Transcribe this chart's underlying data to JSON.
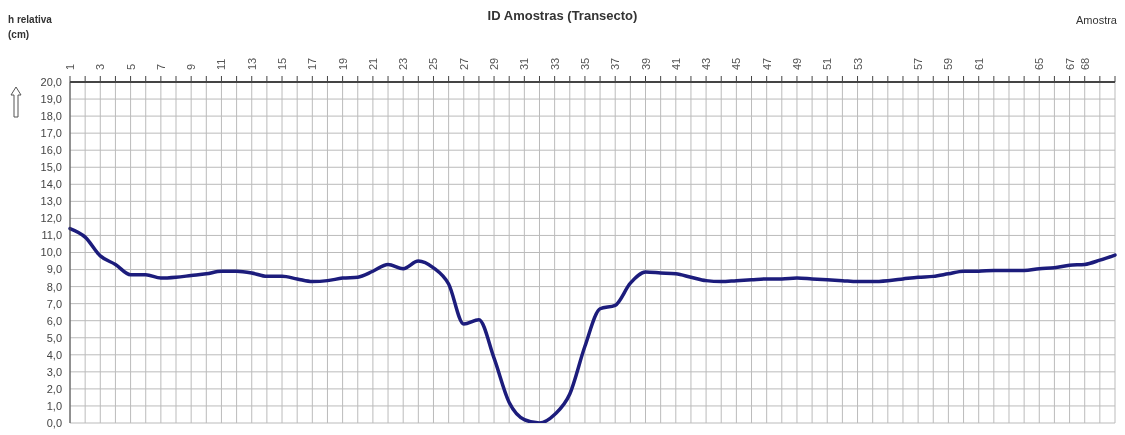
{
  "chart_data": {
    "type": "line",
    "title": "ID Amostras (Transecto)",
    "xlabel": "Amostra",
    "ylabel": "h relativa (cm)",
    "categories": [
      "1",
      null,
      "3",
      null,
      "5",
      null,
      "7",
      null,
      "9",
      null,
      "11",
      null,
      "13",
      null,
      "15",
      null,
      "17",
      null,
      "19",
      null,
      "21",
      null,
      "23",
      null,
      "25",
      null,
      "27",
      null,
      "29",
      null,
      "31",
      null,
      "33",
      null,
      "35",
      null,
      "37",
      null,
      "39",
      null,
      "41",
      null,
      "43",
      null,
      "45",
      null,
      "47",
      null,
      "49",
      null,
      "51",
      null,
      "53",
      null,
      null,
      null,
      "57",
      null,
      "59",
      null,
      "61",
      null,
      null,
      null,
      "65",
      null,
      "67",
      "68",
      null,
      null
    ],
    "series": [
      {
        "color": "#1c1c7c",
        "values": [
          11.4,
          10.9,
          9.8,
          9.3,
          8.7,
          8.7,
          8.5,
          8.55,
          8.65,
          8.75,
          8.9,
          8.9,
          8.8,
          8.6,
          8.6,
          8.45,
          8.3,
          8.35,
          8.5,
          8.55,
          8.9,
          9.3,
          9.05,
          9.5,
          9.1,
          8.15,
          5.8,
          6.05,
          3.8,
          1.2,
          0.2,
          0,
          0.5,
          1.7,
          4.5,
          6.7,
          6.9,
          8.2,
          8.85,
          8.8,
          8.75,
          8.55,
          8.35,
          8.3,
          8.35,
          8.4,
          8.45,
          8.45,
          8.5,
          8.45,
          8.4,
          8.35,
          8.3,
          8.3,
          8.35,
          8.45,
          8.55,
          8.6,
          8.75,
          8.9,
          8.9,
          8.95,
          8.95,
          8.95,
          9.05,
          9.1,
          9.25,
          9.3,
          9.55,
          9.85
        ]
      }
    ],
    "ylim": [
      0,
      20
    ],
    "yticks": [
      {
        "value": 0,
        "label": "0,0"
      },
      {
        "value": 1,
        "label": "1,0"
      },
      {
        "value": 2,
        "label": "2,0"
      },
      {
        "value": 3,
        "label": "3,0"
      },
      {
        "value": 4,
        "label": "4,0"
      },
      {
        "value": 5,
        "label": "5,0"
      },
      {
        "value": 6,
        "label": "6,0"
      },
      {
        "value": 7,
        "label": "7,0"
      },
      {
        "value": 8,
        "label": "8,0"
      },
      {
        "value": 9,
        "label": "9,0"
      },
      {
        "value": 10,
        "label": "10,0"
      },
      {
        "value": 11,
        "label": "11,0"
      },
      {
        "value": 12,
        "label": "12,0"
      },
      {
        "value": 13,
        "label": "13,0"
      },
      {
        "value": 14,
        "label": "14,0"
      },
      {
        "value": 15,
        "label": "15,0"
      },
      {
        "value": 16,
        "label": "16,0"
      },
      {
        "value": 17,
        "label": "17,0"
      },
      {
        "value": 18,
        "label": "18,0"
      },
      {
        "value": 19,
        "label": "19,0"
      },
      {
        "value": 20,
        "label": "20,0"
      }
    ],
    "grid": true,
    "line_style": "solid",
    "marker": "none"
  }
}
